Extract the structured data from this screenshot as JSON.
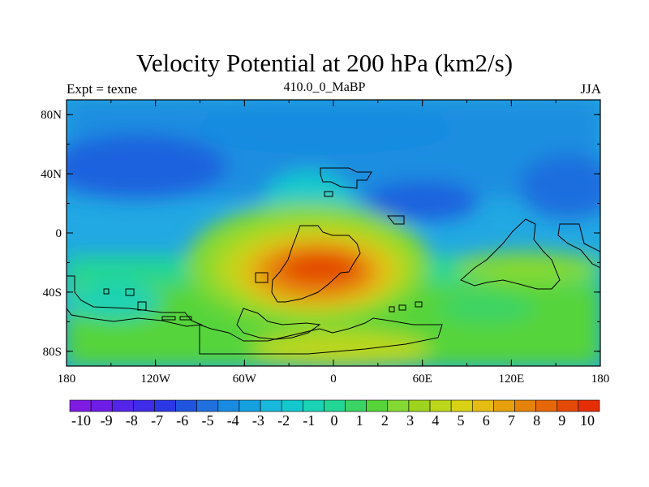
{
  "chart_data": {
    "type": "contour-map",
    "title": "Velocity Potential at 200 hPa (km2/s)",
    "left_string": "Expt = texne",
    "center_string": "410.0_0_MaBP",
    "right_string": "JJA",
    "x_ticks": [
      "180",
      "120W",
      "60W",
      "0",
      "60E",
      "120E",
      "180"
    ],
    "y_ticks": [
      "80N",
      "40N",
      "0",
      "40S",
      "80S"
    ],
    "colorbar_levels": [
      "-10",
      "-9",
      "-8",
      "-7",
      "-6",
      "-5",
      "-4",
      "-3",
      "-2",
      "-1",
      "0",
      "1",
      "2",
      "3",
      "4",
      "5",
      "6",
      "7",
      "8",
      "9",
      "10"
    ],
    "colorbar_colors": [
      "#7e1ce3",
      "#6d1de6",
      "#5524e9",
      "#3f2ce8",
      "#2c38e6",
      "#1f55de",
      "#2270e0",
      "#198be0",
      "#15a0e0",
      "#18b9dc",
      "#14c9cd",
      "#1ad2b4",
      "#22d696",
      "#3ad466",
      "#56d43a",
      "#84d932",
      "#9ed41e",
      "#bcd71a",
      "#d8d215",
      "#e4bc12",
      "#e6a00c",
      "#e58309",
      "#e66708",
      "#e44a06",
      "#e52e04"
    ],
    "x_range": [
      -180,
      180
    ],
    "y_range": [
      -90,
      90
    ]
  }
}
